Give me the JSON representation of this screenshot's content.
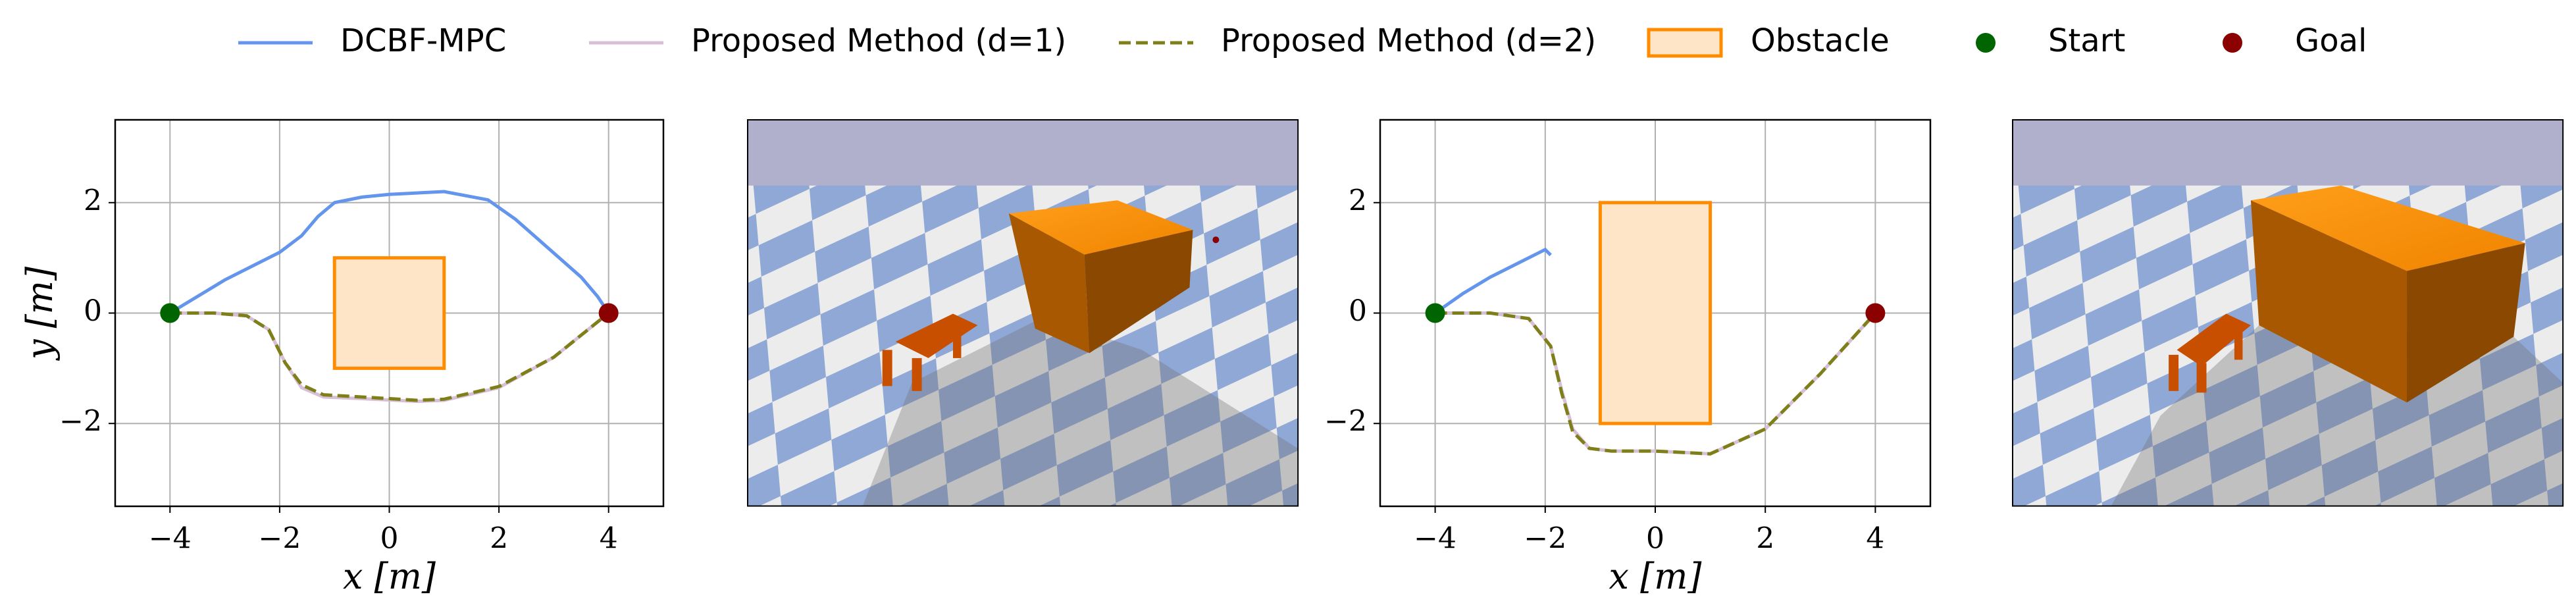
{
  "legend": [
    {
      "name": "DCBF-MPC",
      "kind": "line",
      "color": "#6495ed"
    },
    {
      "name": "Proposed Method (d=1)",
      "kind": "line",
      "color": "#d8bfd8"
    },
    {
      "name": "Proposed Method (d=2)",
      "kind": "dashed",
      "color": "#7f7f1a"
    },
    {
      "name": "Obstacle",
      "kind": "patch",
      "color": "#ffe5c8",
      "edgecolor": "#ff8c00"
    },
    {
      "name": "Start",
      "kind": "marker",
      "color": "#006400"
    },
    {
      "name": "Goal",
      "kind": "marker",
      "color": "#8b0000"
    }
  ],
  "chart_data": [
    {
      "type": "line",
      "xlabel": "x [m]",
      "ylabel": "y [m]",
      "grid": true,
      "xlim": [
        -5,
        5
      ],
      "ylim": [
        -3.5,
        3.5
      ],
      "xticks": [
        {
          "value": -4,
          "label": "−4"
        },
        {
          "value": -2,
          "label": "−2"
        },
        0,
        2,
        4
      ],
      "yticks": [
        {
          "value": -2,
          "label": "−2"
        },
        0,
        2
      ],
      "obstacle": {
        "x": [
          -1,
          1
        ],
        "y": [
          -1,
          1
        ],
        "color": "#ffe5c8",
        "edgecolor": "#ff8c00"
      },
      "start": {
        "x": -4,
        "y": 0,
        "color": "#006400"
      },
      "goal": {
        "x": 4,
        "y": 0,
        "color": "#8b0000"
      },
      "series": [
        {
          "name": "DCBF-MPC",
          "color": "#6495ed",
          "dash": false,
          "x": [
            -4,
            -3,
            -2,
            -1.6,
            -1.3,
            -1,
            -0.5,
            0,
            1,
            1.8,
            2.3,
            2.7,
            3.1,
            3.5,
            3.8,
            4
          ],
          "values": [
            0,
            0.6,
            1.1,
            1.4,
            1.75,
            2.0,
            2.1,
            2.15,
            2.2,
            2.05,
            1.7,
            1.35,
            1.0,
            0.65,
            0.3,
            0
          ]
        },
        {
          "name": "Proposed Method (d=1)",
          "color": "#d8bfd8",
          "dash": false,
          "x": [
            -4,
            -3.2,
            -2.6,
            -2.2,
            -1.9,
            -1.6,
            -1.2,
            -0.5,
            0.5,
            1,
            2,
            3,
            4
          ],
          "values": [
            0,
            0,
            -0.05,
            -0.3,
            -0.9,
            -1.35,
            -1.52,
            -1.55,
            -1.6,
            -1.58,
            -1.35,
            -0.8,
            0
          ]
        },
        {
          "name": "Proposed Method (d=2)",
          "color": "#7f7f1a",
          "dash": true,
          "x": [
            -4,
            -3.2,
            -2.6,
            -2.2,
            -1.9,
            -1.6,
            -1.2,
            -0.5,
            0.5,
            1,
            2,
            3,
            4
          ],
          "values": [
            0,
            0,
            -0.05,
            -0.3,
            -0.9,
            -1.3,
            -1.48,
            -1.52,
            -1.58,
            -1.56,
            -1.33,
            -0.8,
            0
          ]
        }
      ]
    },
    {
      "type": "line",
      "xlabel": "x [m]",
      "grid": true,
      "xlim": [
        -5,
        5
      ],
      "ylim": [
        -3.5,
        3.5
      ],
      "xticks": [
        {
          "value": -4,
          "label": "−4"
        },
        {
          "value": -2,
          "label": "−2"
        },
        0,
        2,
        4
      ],
      "yticks": [
        {
          "value": -2,
          "label": "−2"
        },
        0,
        2
      ],
      "obstacle": {
        "x": [
          -1,
          1
        ],
        "y": [
          -2,
          2
        ],
        "color": "#ffe5c8",
        "edgecolor": "#ff8c00"
      },
      "start": {
        "x": -4,
        "y": 0,
        "color": "#006400"
      },
      "goal": {
        "x": 4,
        "y": 0,
        "color": "#8b0000"
      },
      "series": [
        {
          "name": "DCBF-MPC",
          "color": "#6495ed",
          "dash": false,
          "x": [
            -4,
            -3.5,
            -3,
            -2.5,
            -2,
            -1.9
          ],
          "values": [
            0,
            0.35,
            0.65,
            0.9,
            1.15,
            1.05
          ]
        },
        {
          "name": "Proposed Method (d=1)",
          "color": "#d8bfd8",
          "dash": false,
          "x": [
            -4,
            -3,
            -2.3,
            -1.9,
            -1.7,
            -1.5,
            -1.2,
            -0.8,
            0,
            1,
            2,
            3,
            4
          ],
          "values": [
            0,
            0,
            -0.1,
            -0.6,
            -1.4,
            -2.1,
            -2.45,
            -2.5,
            -2.5,
            -2.55,
            -2.1,
            -1.1,
            0
          ]
        },
        {
          "name": "Proposed Method (d=2)",
          "color": "#7f7f1a",
          "dash": true,
          "x": [
            -4,
            -3,
            -2.3,
            -1.9,
            -1.7,
            -1.5,
            -1.2,
            -0.8,
            0,
            1,
            2,
            3,
            4
          ],
          "values": [
            0,
            0,
            -0.1,
            -0.6,
            -1.45,
            -2.15,
            -2.45,
            -2.5,
            -2.5,
            -2.55,
            -2.1,
            -1.1,
            0
          ]
        }
      ]
    }
  ]
}
